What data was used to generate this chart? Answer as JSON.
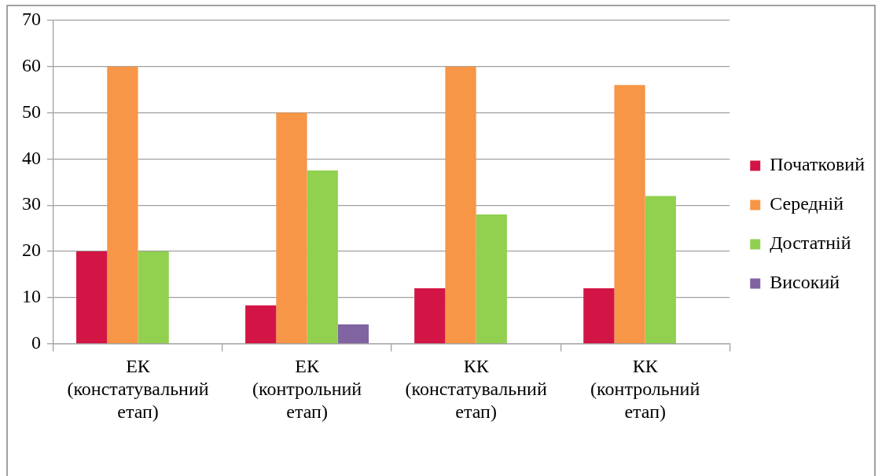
{
  "chart_data": {
    "type": "bar",
    "categories": [
      "ЕК (констатувальний етап)",
      "ЕК (контрольний етап)",
      "КК (констатувальний етап)",
      "КК (контрольний етап)"
    ],
    "series": [
      {
        "name": "Початковий",
        "color": "#d31545",
        "values": [
          20,
          8.3,
          12,
          12
        ]
      },
      {
        "name": "Середній",
        "color": "#f79646",
        "values": [
          60,
          50,
          60,
          56
        ]
      },
      {
        "name": "Достатній",
        "color": "#92d050",
        "values": [
          20,
          37.5,
          28,
          32
        ]
      },
      {
        "name": "Високий",
        "color": "#8064a2",
        "values": [
          0,
          4.2,
          0,
          0
        ]
      }
    ],
    "ylim": [
      0,
      70
    ],
    "yticks": [
      0,
      10,
      20,
      30,
      40,
      50,
      60,
      70
    ],
    "grid": "y",
    "legend": "right"
  }
}
